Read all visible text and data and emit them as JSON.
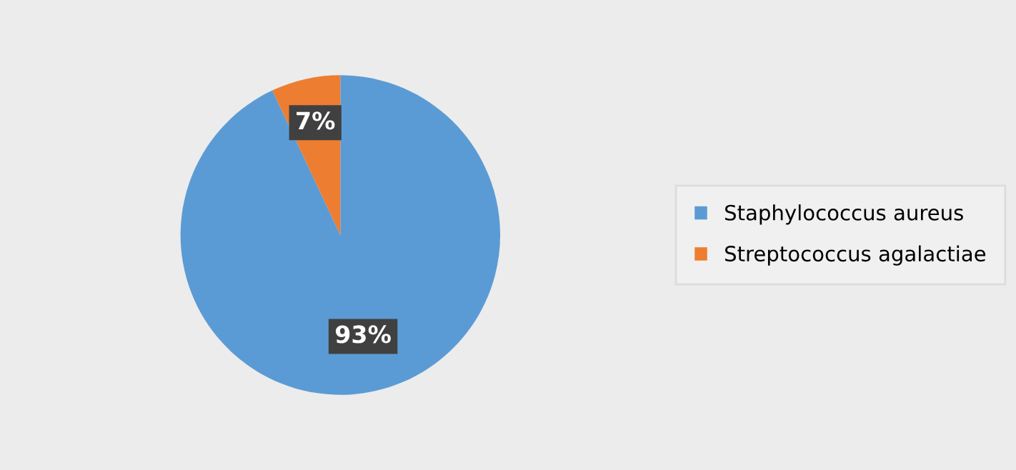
{
  "chart_data": {
    "type": "pie",
    "categories": [
      "Staphylococcus aureus",
      "Streptococcus agalactiae"
    ],
    "values": [
      93,
      7
    ],
    "colors": [
      "#5b9bd5",
      "#ed7d31"
    ],
    "value_labels": [
      "93%",
      "7%"
    ],
    "legend": "right"
  }
}
